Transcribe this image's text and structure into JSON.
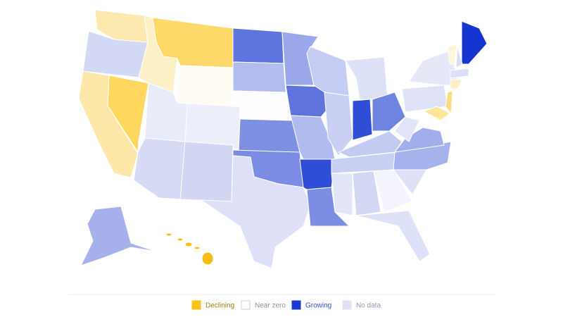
{
  "legend": {
    "items": [
      {
        "label": "Declining",
        "color": "#f6c31b",
        "text_color": "#a47b0f"
      },
      {
        "label": "Near zero",
        "color": "#ffffff",
        "text_color": "#8a8f9c"
      },
      {
        "label": "Growing",
        "color": "#1a3bd0",
        "text_color": "#3150c9"
      },
      {
        "label": "No data",
        "color": "#dde1f2",
        "text_color": "#8c96b3"
      }
    ]
  }
}
